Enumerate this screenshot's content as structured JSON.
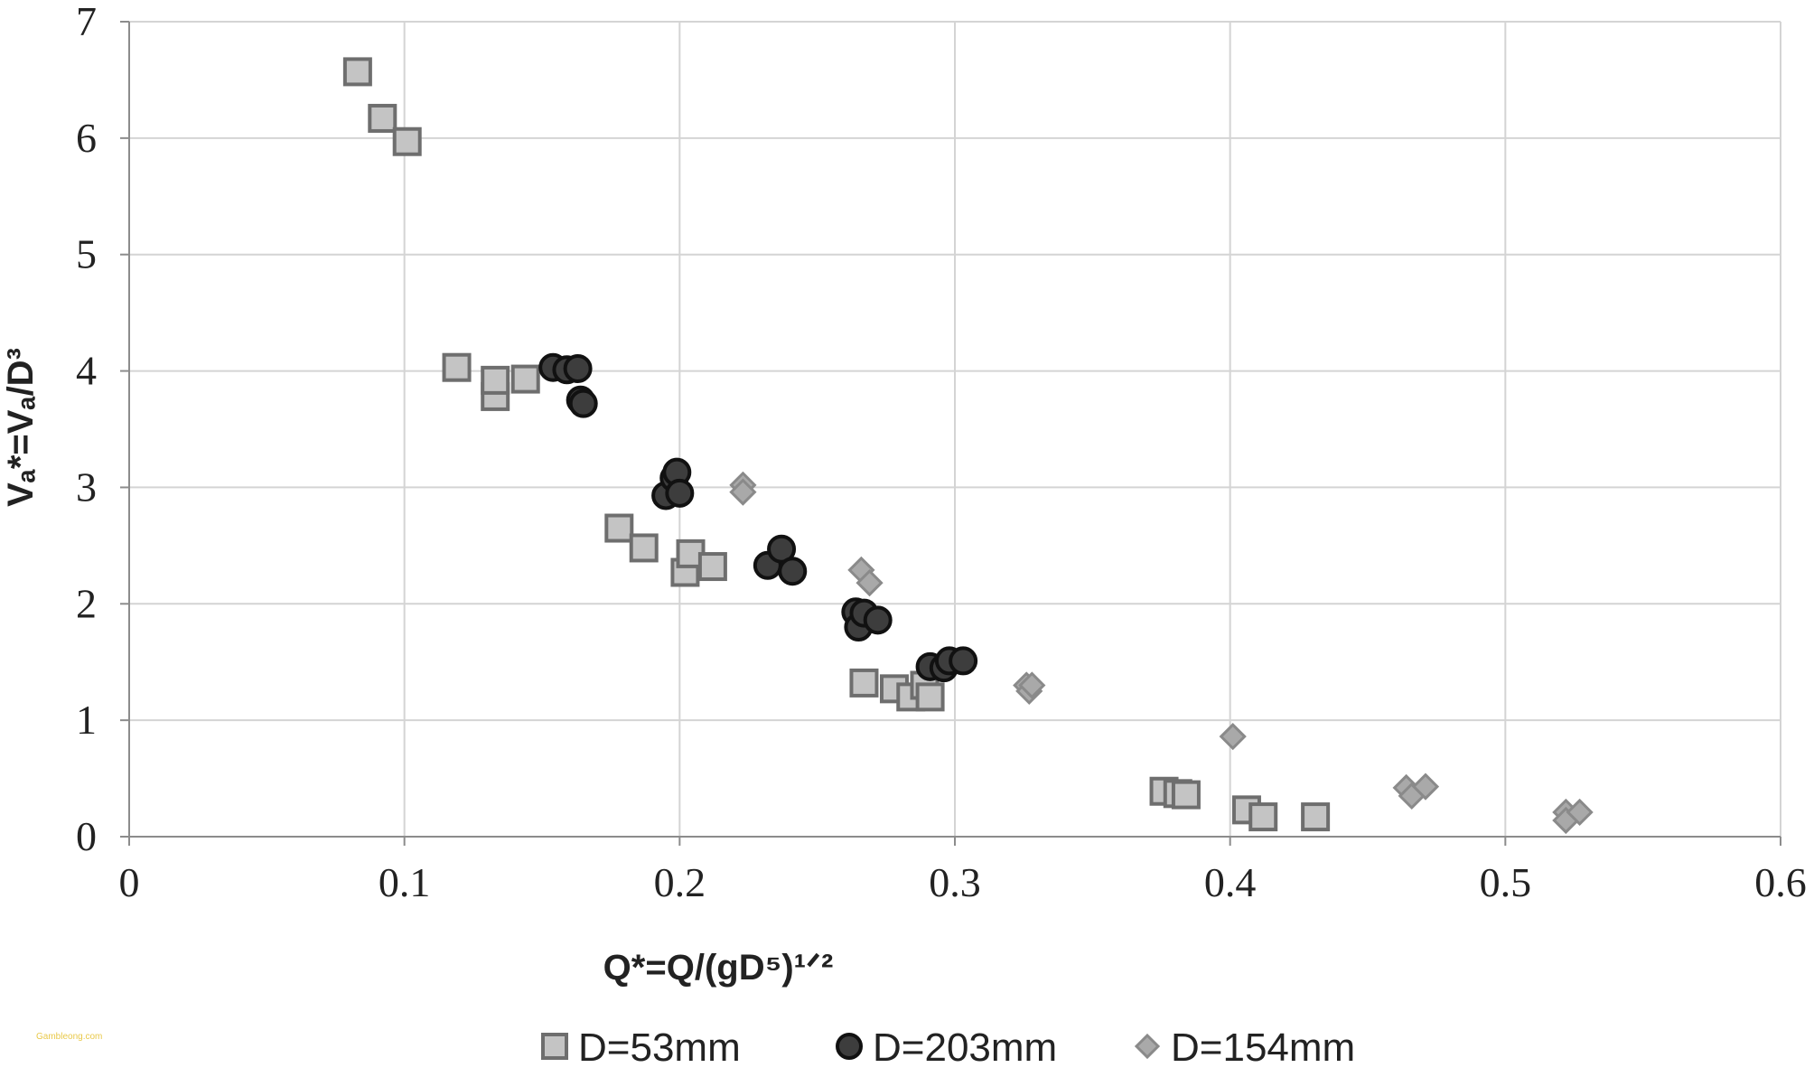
{
  "chart_data": {
    "type": "scatter",
    "title": "",
    "xlabel": "Q*=Q/(gD⁵)¹ᐟ²",
    "ylabel": "Vₐ*=Vₐ/D³",
    "xlim": [
      0,
      0.6
    ],
    "ylim": [
      0,
      7
    ],
    "x_ticks": [
      "0",
      "0.1",
      "0.2",
      "0.3",
      "0.4",
      "0.5",
      "0.6"
    ],
    "y_ticks": [
      "0",
      "1",
      "2",
      "3",
      "4",
      "5",
      "6",
      "7"
    ],
    "grid": true,
    "legend_position": "bottom",
    "series": [
      {
        "name": "D=53mm",
        "marker": "square",
        "fill": "#c4c4c4",
        "stroke": "#6e6e6e",
        "points": [
          [
            0.083,
            6.57
          ],
          [
            0.092,
            6.17
          ],
          [
            0.101,
            5.97
          ],
          [
            0.119,
            4.03
          ],
          [
            0.133,
            3.78
          ],
          [
            0.133,
            3.92
          ],
          [
            0.144,
            3.93
          ],
          [
            0.178,
            2.65
          ],
          [
            0.187,
            2.48
          ],
          [
            0.202,
            2.27
          ],
          [
            0.204,
            2.43
          ],
          [
            0.212,
            2.32
          ],
          [
            0.267,
            1.32
          ],
          [
            0.278,
            1.27
          ],
          [
            0.284,
            1.2
          ],
          [
            0.289,
            1.3
          ],
          [
            0.291,
            1.2
          ],
          [
            0.376,
            0.39
          ],
          [
            0.381,
            0.37
          ],
          [
            0.384,
            0.36
          ],
          [
            0.406,
            0.23
          ],
          [
            0.412,
            0.17
          ],
          [
            0.431,
            0.17
          ]
        ]
      },
      {
        "name": "D=203mm",
        "marker": "circle",
        "fill": "#3d3d3d",
        "stroke": "#111111",
        "points": [
          [
            0.154,
            4.03
          ],
          [
            0.159,
            4.01
          ],
          [
            0.163,
            4.02
          ],
          [
            0.164,
            3.75
          ],
          [
            0.165,
            3.72
          ],
          [
            0.195,
            2.93
          ],
          [
            0.198,
            3.08
          ],
          [
            0.199,
            3.13
          ],
          [
            0.2,
            2.95
          ],
          [
            0.232,
            2.33
          ],
          [
            0.237,
            2.47
          ],
          [
            0.241,
            2.28
          ],
          [
            0.264,
            1.93
          ],
          [
            0.265,
            1.8
          ],
          [
            0.267,
            1.92
          ],
          [
            0.272,
            1.86
          ],
          [
            0.291,
            1.46
          ],
          [
            0.296,
            1.45
          ],
          [
            0.298,
            1.51
          ],
          [
            0.303,
            1.51
          ]
        ]
      },
      {
        "name": "D=154mm",
        "marker": "diamond",
        "fill": "#a9a9a9",
        "stroke": "#8a8a8a",
        "points": [
          [
            0.223,
            3.02
          ],
          [
            0.223,
            2.96
          ],
          [
            0.266,
            2.29
          ],
          [
            0.269,
            2.18
          ],
          [
            0.326,
            1.3
          ],
          [
            0.327,
            1.25
          ],
          [
            0.328,
            1.3
          ],
          [
            0.401,
            0.86
          ],
          [
            0.464,
            0.42
          ],
          [
            0.466,
            0.35
          ],
          [
            0.471,
            0.43
          ],
          [
            0.522,
            0.21
          ],
          [
            0.522,
            0.14
          ],
          [
            0.527,
            0.21
          ]
        ]
      }
    ]
  },
  "watermark": "Gambleong.com"
}
